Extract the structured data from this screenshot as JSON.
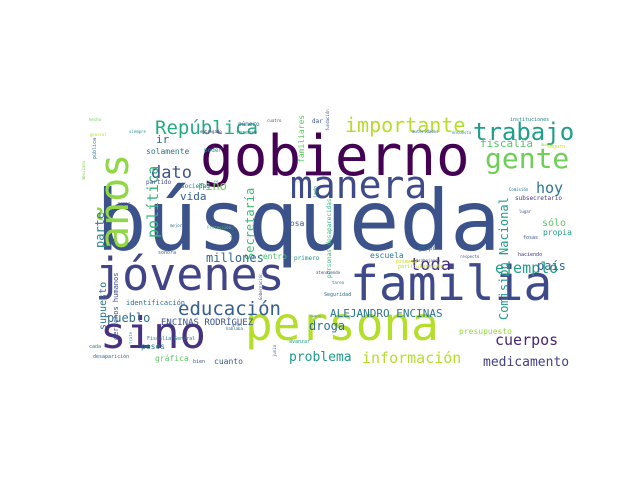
{
  "word_cloud": {
    "colors": {
      "background": "#ffffff",
      "palette": "viridis"
    },
    "words": [
      {
        "text": "búsqueda",
        "color": "#3b528b"
      },
      {
        "text": "gobierno",
        "color": "#440154"
      },
      {
        "text": "persona",
        "color": "#b5de2b"
      },
      {
        "text": "familia",
        "color": "#3e4a89"
      },
      {
        "text": "jóvenes",
        "color": "#414487"
      },
      {
        "text": "sino",
        "color": "#46327e"
      },
      {
        "text": "manera",
        "color": "#3e4a89"
      },
      {
        "text": "años",
        "color": "#8fd744"
      },
      {
        "text": "gente",
        "color": "#6ece58"
      },
      {
        "text": "trabajo",
        "color": "#1f9e89"
      },
      {
        "text": "importante",
        "color": "#b5de2b"
      },
      {
        "text": "República",
        "color": "#25ab82"
      },
      {
        "text": "educación",
        "color": "#355f8d"
      },
      {
        "text": "dato",
        "color": "#3b528b"
      },
      {
        "text": "política",
        "color": "#35b779"
      },
      {
        "text": "toda",
        "color": "#472d7b"
      },
      {
        "text": "ejemplo",
        "color": "#1fa088"
      },
      {
        "text": "hoy",
        "color": "#2a788e"
      },
      {
        "text": "cuerpos",
        "color": "#482475"
      },
      {
        "text": "información",
        "color": "#b5de2b"
      },
      {
        "text": "medicamento",
        "color": "#424086"
      },
      {
        "text": "problema",
        "color": "#1f9a8a"
      },
      {
        "text": "pueblo",
        "color": "#2d708e"
      },
      {
        "text": "país",
        "color": "#31688e"
      },
      {
        "text": "droga",
        "color": "#2e6e8e"
      },
      {
        "text": "ALEJANDRO ENCINAS",
        "color": "#2a768e"
      },
      {
        "text": "ENCINAS RODRÍGUEZ",
        "color": "#3b528b"
      },
      {
        "text": "Comisión Nacional",
        "color": "#1e9b8a"
      },
      {
        "text": "Secretaría",
        "color": "#3fbc73"
      },
      {
        "text": "millones",
        "color": "#31688e"
      },
      {
        "text": "fiscalía",
        "color": "#54c568"
      },
      {
        "text": "niño",
        "color": "#6ece58"
      },
      {
        "text": "vida",
        "color": "#34608d"
      },
      {
        "text": "parte",
        "color": "#25848e"
      },
      {
        "text": "supuesto",
        "color": "#2c728e"
      },
      {
        "text": "ir",
        "color": "#365c8d"
      },
      {
        "text": "solamente",
        "color": "#2b758e"
      },
      {
        "text": "sólo",
        "color": "#5ec962"
      },
      {
        "text": "propia",
        "color": "#1f9f88"
      },
      {
        "text": "escuela",
        "color": "#287d8e"
      },
      {
        "text": "cosa",
        "color": "#39568c"
      },
      {
        "text": "centro",
        "color": "#4ac16d"
      },
      {
        "text": "presupuesto",
        "color": "#95d840"
      },
      {
        "text": "pesos",
        "color": "#2a788e"
      },
      {
        "text": "gráfica",
        "color": "#5ec962"
      },
      {
        "text": "cuanto",
        "color": "#365c8d"
      },
      {
        "text": "identificación",
        "color": "#2d718e"
      },
      {
        "text": "derechos humanos",
        "color": "#3e4989"
      },
      {
        "text": "número",
        "color": "#31688e"
      },
      {
        "text": "familiares",
        "color": "#5ec962"
      },
      {
        "text": "partido",
        "color": "#3c508b"
      },
      {
        "text": "sociedad",
        "color": "#2a778e"
      },
      {
        "text": "personas desaparecidas",
        "color": "#31b57b"
      },
      {
        "text": "subsecretario",
        "color": "#453781"
      },
      {
        "text": "Seguridad",
        "color": "#2e6f8e"
      },
      {
        "text": "primero",
        "color": "#21918c"
      },
      {
        "text": "tarea",
        "color": "#25858e"
      },
      {
        "text": "poder",
        "color": "#1f948c"
      },
      {
        "text": "dar",
        "color": "#3b528b"
      },
      {
        "text": "hecho",
        "color": "#6ece58"
      },
      {
        "text": "mexicano",
        "color": "#7ad151"
      },
      {
        "text": "pública",
        "color": "#2b758e"
      },
      {
        "text": "siempre",
        "color": "#1f968b"
      },
      {
        "text": "entregado",
        "color": "#482173"
      },
      {
        "text": "forense",
        "color": "#2c728e"
      },
      {
        "text": "cuatro",
        "color": "#3a548c"
      },
      {
        "text": "Fiscalía General",
        "color": "#26828e"
      },
      {
        "text": "Protección",
        "color": "#5ec962"
      },
      {
        "text": "informar",
        "color": "#2d708e"
      },
      {
        "text": "Gobernación",
        "color": "#3e4c8a"
      },
      {
        "text": "hablaba",
        "color": "#2c728e"
      },
      {
        "text": "bien",
        "color": "#3b528b"
      },
      {
        "text": "cada",
        "color": "#25848e"
      },
      {
        "text": "desaparición",
        "color": "#31688e"
      },
      {
        "text": "trate",
        "color": "#22a884"
      },
      {
        "text": "avanzar",
        "color": "#20a386"
      },
      {
        "text": "cambio",
        "color": "#2a788e"
      },
      {
        "text": "lado",
        "color": "#23898e"
      },
      {
        "text": "atendiendo",
        "color": "#3e4a89"
      },
      {
        "text": "lugar",
        "color": "#3b528b"
      },
      {
        "text": "Comisión",
        "color": "#2c728e"
      },
      {
        "text": "haciendo",
        "color": "#46337e"
      },
      {
        "text": "respecto",
        "color": "#38588c"
      },
      {
        "text": "grupo",
        "color": "#2d708e"
      },
      {
        "text": "instituciones",
        "color": "#26818e"
      },
      {
        "text": "autoridades",
        "color": "#2f6c8e"
      },
      {
        "text": "encuesta",
        "color": "#1f958b"
      },
      {
        "text": "fundación",
        "color": "#3b528b"
      },
      {
        "text": "trabajando",
        "color": "#39558c"
      },
      {
        "text": "particularmente",
        "color": "#b5de2b"
      },
      {
        "text": "fosas",
        "color": "#3b528b"
      },
      {
        "text": "mayor",
        "color": "#3e4a89"
      },
      {
        "text": "mejor",
        "color": "#2d718e"
      },
      {
        "text": "sonora",
        "color": "#2e6e8e"
      },
      {
        "text": "primera",
        "color": "#c8e020"
      },
      {
        "text": "general",
        "color": "#b8de29"
      },
      {
        "text": "gran",
        "color": "#2a778e"
      },
      {
        "text": "junio",
        "color": "#38588c"
      },
      {
        "text": "mucho",
        "color": "#86d549"
      },
      {
        "text": "seguro",
        "color": "#d2e21b"
      }
    ]
  }
}
